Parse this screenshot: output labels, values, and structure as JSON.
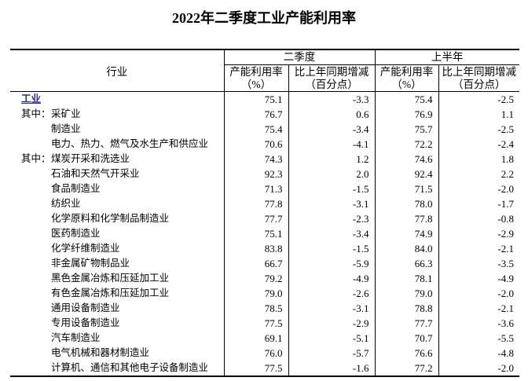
{
  "page": {
    "background_color": "#ffffff",
    "text_color": "#000000"
  },
  "title": "2022年二季度工业产能利用率",
  "table": {
    "emphasis_color": "#2a2f86",
    "border_color": "#000000",
    "header": {
      "industry": "行业",
      "q2_group": "二季度",
      "h1_group": "上半年",
      "utilization_line1": "产能利用率",
      "utilization_line2": "（%）",
      "change_line1": "比上年同期增减",
      "change_line2": "（百分点）"
    },
    "rows": [
      {
        "prefix": "",
        "name": "工业",
        "indent": false,
        "emphasis": true,
        "q2_utilization": "75.1",
        "q2_change": "-3.3",
        "h1_utilization": "75.4",
        "h1_change": "-2.5"
      },
      {
        "prefix": "其中：",
        "name": "采矿业",
        "indent": true,
        "emphasis": false,
        "q2_utilization": "76.7",
        "q2_change": "0.6",
        "h1_utilization": "76.9",
        "h1_change": "1.1"
      },
      {
        "prefix": "",
        "name": "制造业",
        "indent": true,
        "emphasis": false,
        "q2_utilization": "75.4",
        "q2_change": "-3.4",
        "h1_utilization": "75.7",
        "h1_change": "-2.5"
      },
      {
        "prefix": "",
        "name": "电力、热力、燃气及水生产和供应业",
        "indent": true,
        "emphasis": false,
        "q2_utilization": "70.6",
        "q2_change": "-4.1",
        "h1_utilization": "72.2",
        "h1_change": "-2.4"
      },
      {
        "prefix": "其中：",
        "name": "煤炭开采和洗选业",
        "indent": true,
        "emphasis": false,
        "q2_utilization": "74.3",
        "q2_change": "1.2",
        "h1_utilization": "74.6",
        "h1_change": "1.8"
      },
      {
        "prefix": "",
        "name": "石油和天然气开采业",
        "indent": true,
        "emphasis": false,
        "q2_utilization": "92.3",
        "q2_change": "2.0",
        "h1_utilization": "92.4",
        "h1_change": "2.2"
      },
      {
        "prefix": "",
        "name": "食品制造业",
        "indent": true,
        "emphasis": false,
        "q2_utilization": "71.3",
        "q2_change": "-1.5",
        "h1_utilization": "71.5",
        "h1_change": "-2.0"
      },
      {
        "prefix": "",
        "name": "纺织业",
        "indent": true,
        "emphasis": false,
        "q2_utilization": "77.8",
        "q2_change": "-3.1",
        "h1_utilization": "78.0",
        "h1_change": "-1.7"
      },
      {
        "prefix": "",
        "name": "化学原料和化学制品制造业",
        "indent": true,
        "emphasis": false,
        "q2_utilization": "77.7",
        "q2_change": "-2.3",
        "h1_utilization": "77.8",
        "h1_change": "-0.8"
      },
      {
        "prefix": "",
        "name": "医药制造业",
        "indent": true,
        "emphasis": false,
        "q2_utilization": "75.1",
        "q2_change": "-3.4",
        "h1_utilization": "74.9",
        "h1_change": "-2.9"
      },
      {
        "prefix": "",
        "name": "化学纤维制造业",
        "indent": true,
        "emphasis": false,
        "q2_utilization": "83.8",
        "q2_change": "-1.5",
        "h1_utilization": "84.0",
        "h1_change": "-2.1"
      },
      {
        "prefix": "",
        "name": "非金属矿物制品业",
        "indent": true,
        "emphasis": false,
        "q2_utilization": "66.7",
        "q2_change": "-5.9",
        "h1_utilization": "66.3",
        "h1_change": "-3.5"
      },
      {
        "prefix": "",
        "name": "黑色金属冶炼和压延加工业",
        "indent": true,
        "emphasis": false,
        "q2_utilization": "79.2",
        "q2_change": "-4.9",
        "h1_utilization": "78.1",
        "h1_change": "-4.9"
      },
      {
        "prefix": "",
        "name": "有色金属冶炼和压延加工业",
        "indent": true,
        "emphasis": false,
        "q2_utilization": "79.0",
        "q2_change": "-2.6",
        "h1_utilization": "79.0",
        "h1_change": "-2.0"
      },
      {
        "prefix": "",
        "name": "通用设备制造业",
        "indent": true,
        "emphasis": false,
        "q2_utilization": "78.5",
        "q2_change": "-3.1",
        "h1_utilization": "78.8",
        "h1_change": "-2.1"
      },
      {
        "prefix": "",
        "name": "专用设备制造业",
        "indent": true,
        "emphasis": false,
        "q2_utilization": "77.5",
        "q2_change": "-2.9",
        "h1_utilization": "77.7",
        "h1_change": "-3.6"
      },
      {
        "prefix": "",
        "name": "汽车制造业",
        "indent": true,
        "emphasis": false,
        "q2_utilization": "69.1",
        "q2_change": "-5.1",
        "h1_utilization": "70.7",
        "h1_change": "-5.5"
      },
      {
        "prefix": "",
        "name": "电气机械和器材制造业",
        "indent": true,
        "emphasis": false,
        "q2_utilization": "76.0",
        "q2_change": "-5.7",
        "h1_utilization": "76.6",
        "h1_change": "-4.8"
      },
      {
        "prefix": "",
        "name": "计算机、通信和其他电子设备制造业",
        "indent": true,
        "emphasis": false,
        "q2_utilization": "77.5",
        "q2_change": "-1.6",
        "h1_utilization": "77.2",
        "h1_change": "-2.0"
      }
    ]
  }
}
